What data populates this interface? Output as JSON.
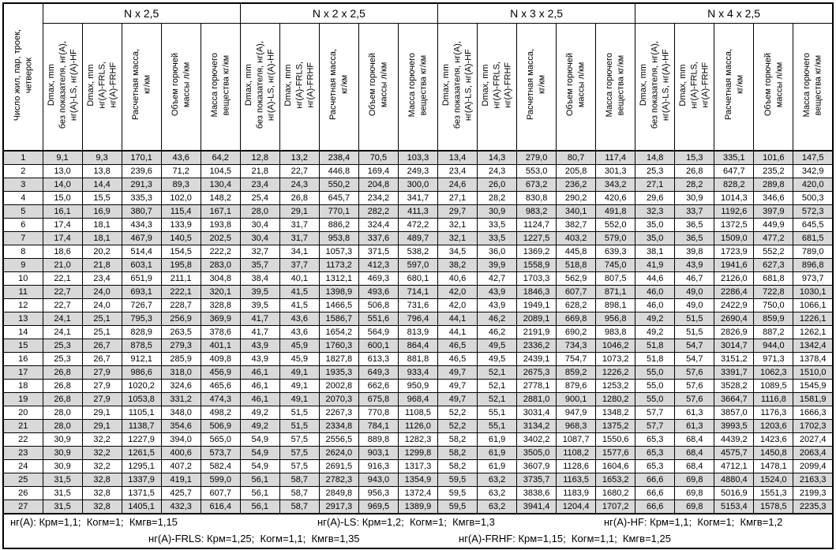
{
  "colors": {
    "row_shade": "#d9d9d9",
    "border": "#000000",
    "background": "#ffffff"
  },
  "table": {
    "corner_header": "Число жил, пар, троек,\nчетверок",
    "groups": [
      {
        "label": "N x 2,5"
      },
      {
        "label": "N x 2 x 2,5"
      },
      {
        "label": "N x 3 x 2,5"
      },
      {
        "label": "N x 4 x 2,5"
      }
    ],
    "subheaders": [
      "Dmax, mm\nбез показателя, нг(А),\nнг(А)-LS, нг(А)-HF",
      "Dmax, mm\nнг(А)-FRLS,\nнг(А)-FRHF",
      "Расчетная масса,\nкг/км",
      "Объем горючей\nмассы л/км",
      "Масса горючего\nвещества кг/км"
    ],
    "rows": [
      {
        "n": "1",
        "values": [
          "9,1",
          "9,3",
          "170,1",
          "43,6",
          "64,2",
          "12,8",
          "13,2",
          "238,4",
          "70,5",
          "103,3",
          "13,4",
          "14,3",
          "279,0",
          "80,7",
          "117,4",
          "14,8",
          "15,3",
          "335,1",
          "101,6",
          "147,5"
        ]
      },
      {
        "n": "2",
        "values": [
          "13,0",
          "13,8",
          "239,6",
          "71,2",
          "104,5",
          "21,8",
          "22,7",
          "446,8",
          "169,4",
          "249,3",
          "23,4",
          "24,3",
          "553,0",
          "205,8",
          "301,3",
          "25,3",
          "26,8",
          "647,7",
          "235,2",
          "342,9"
        ]
      },
      {
        "n": "3",
        "values": [
          "14,0",
          "14,4",
          "291,3",
          "89,3",
          "130,4",
          "23,4",
          "24,3",
          "550,2",
          "204,8",
          "300,0",
          "24,6",
          "26,0",
          "673,2",
          "236,2",
          "343,2",
          "27,1",
          "28,2",
          "828,2",
          "289,8",
          "420,0"
        ]
      },
      {
        "n": "4",
        "values": [
          "15,0",
          "15,5",
          "335,3",
          "102,0",
          "148,2",
          "25,4",
          "26,8",
          "645,7",
          "234,2",
          "341,7",
          "27,1",
          "28,2",
          "830,8",
          "290,2",
          "420,6",
          "29,6",
          "30,9",
          "1014,3",
          "346,6",
          "500,3"
        ]
      },
      {
        "n": "5",
        "values": [
          "16,1",
          "16,9",
          "380,7",
          "115,4",
          "167,1",
          "28,0",
          "29,1",
          "770,1",
          "282,2",
          "411,3",
          "29,7",
          "30,9",
          "983,2",
          "340,1",
          "491,8",
          "32,3",
          "33,7",
          "1192,6",
          "397,9",
          "572,3"
        ]
      },
      {
        "n": "6",
        "values": [
          "17,4",
          "18,1",
          "434,3",
          "133,9",
          "193,8",
          "30,4",
          "31,7",
          "886,2",
          "324,4",
          "472,2",
          "32,1",
          "33,5",
          "1124,7",
          "382,7",
          "552,0",
          "35,0",
          "36,5",
          "1372,5",
          "449,9",
          "645,5"
        ]
      },
      {
        "n": "7",
        "values": [
          "17,4",
          "18,1",
          "467,9",
          "140,5",
          "202,5",
          "30,4",
          "31,7",
          "953,8",
          "337,6",
          "489,7",
          "32,1",
          "33,5",
          "1227,5",
          "403,2",
          "579,0",
          "35,0",
          "36,5",
          "1509,0",
          "477,2",
          "681,5"
        ]
      },
      {
        "n": "8",
        "values": [
          "18,6",
          "20,2",
          "514,4",
          "154,5",
          "222,2",
          "32,7",
          "34,1",
          "1057,3",
          "371,5",
          "538,2",
          "34,5",
          "36,0",
          "1369,2",
          "445,8",
          "639,3",
          "38,1",
          "39,8",
          "1723,9",
          "552,2",
          "789,0"
        ]
      },
      {
        "n": "9",
        "values": [
          "21,0",
          "21,8",
          "603,1",
          "195,8",
          "283,0",
          "35,7",
          "37,7",
          "1173,2",
          "412,3",
          "597,0",
          "38,2",
          "39,9",
          "1558,9",
          "518,8",
          "745,0",
          "41,9",
          "43,9",
          "1941,6",
          "627,3",
          "896,8"
        ]
      },
      {
        "n": "10",
        "values": [
          "22,1",
          "23,4",
          "651,9",
          "211,1",
          "304,8",
          "38,4",
          "40,1",
          "1312,1",
          "469,3",
          "680,1",
          "40,6",
          "42,7",
          "1703,3",
          "562,9",
          "807,5",
          "44,6",
          "46,7",
          "2126,0",
          "681,8",
          "973,7"
        ]
      },
      {
        "n": "11",
        "values": [
          "22,7",
          "24,0",
          "693,1",
          "222,1",
          "320,1",
          "39,5",
          "41,5",
          "1398,9",
          "493,6",
          "714,1",
          "42,0",
          "43,9",
          "1846,3",
          "607,7",
          "871,1",
          "46,0",
          "49,0",
          "2286,4",
          "722,8",
          "1030,1"
        ]
      },
      {
        "n": "12",
        "values": [
          "22,7",
          "24,0",
          "726,7",
          "228,7",
          "328,8",
          "39,5",
          "41,5",
          "1466,5",
          "506,8",
          "731,6",
          "42,0",
          "43,9",
          "1949,1",
          "628,2",
          "898,1",
          "46,0",
          "49,0",
          "2422,9",
          "750,0",
          "1066,1"
        ]
      },
      {
        "n": "13",
        "values": [
          "24,1",
          "25,1",
          "795,3",
          "256,9",
          "369,9",
          "41,7",
          "43,6",
          "1586,7",
          "551,6",
          "796,4",
          "44,1",
          "46,2",
          "2089,1",
          "669,8",
          "956,8",
          "49,2",
          "51,5",
          "2690,4",
          "859,9",
          "1226,1"
        ]
      },
      {
        "n": "14",
        "values": [
          "24,1",
          "25,1",
          "828,9",
          "263,5",
          "378,6",
          "41,7",
          "43,6",
          "1654,2",
          "564,9",
          "813,9",
          "44,1",
          "46,2",
          "2191,9",
          "690,2",
          "983,8",
          "49,2",
          "51,5",
          "2826,9",
          "887,2",
          "1262,1"
        ]
      },
      {
        "n": "15",
        "values": [
          "25,3",
          "26,7",
          "878,5",
          "279,3",
          "401,1",
          "43,9",
          "45,9",
          "1760,3",
          "600,1",
          "864,4",
          "46,5",
          "49,5",
          "2336,2",
          "734,3",
          "1046,2",
          "51,8",
          "54,7",
          "3014,7",
          "944,0",
          "1342,4"
        ]
      },
      {
        "n": "16",
        "values": [
          "25,3",
          "26,7",
          "912,1",
          "285,9",
          "409,8",
          "43,9",
          "45,9",
          "1827,8",
          "613,3",
          "881,8",
          "46,5",
          "49,5",
          "2439,1",
          "754,7",
          "1073,2",
          "51,8",
          "54,7",
          "3151,2",
          "971,3",
          "1378,4"
        ]
      },
      {
        "n": "17",
        "values": [
          "26,8",
          "27,9",
          "986,6",
          "318,0",
          "456,9",
          "46,1",
          "49,1",
          "1935,3",
          "649,3",
          "933,4",
          "49,7",
          "52,1",
          "2675,3",
          "859,2",
          "1226,2",
          "55,0",
          "57,6",
          "3391,7",
          "1062,3",
          "1510,0"
        ]
      },
      {
        "n": "18",
        "values": [
          "26,8",
          "27,9",
          "1020,2",
          "324,6",
          "465,6",
          "46,1",
          "49,1",
          "2002,8",
          "662,6",
          "950,9",
          "49,7",
          "52,1",
          "2778,1",
          "879,6",
          "1253,2",
          "55,0",
          "57,6",
          "3528,2",
          "1089,5",
          "1545,9"
        ]
      },
      {
        "n": "19",
        "values": [
          "26,8",
          "27,9",
          "1053,8",
          "331,2",
          "474,3",
          "46,1",
          "49,1",
          "2070,3",
          "675,8",
          "968,4",
          "49,7",
          "52,1",
          "2881,0",
          "900,1",
          "1280,2",
          "55,0",
          "57,6",
          "3664,7",
          "1116,8",
          "1581,9"
        ]
      },
      {
        "n": "20",
        "values": [
          "28,0",
          "29,1",
          "1105,1",
          "348,0",
          "498,2",
          "49,2",
          "51,5",
          "2267,3",
          "770,8",
          "1108,5",
          "52,2",
          "55,1",
          "3031,4",
          "947,9",
          "1348,2",
          "57,7",
          "61,3",
          "3857,0",
          "1176,3",
          "1666,3"
        ]
      },
      {
        "n": "21",
        "values": [
          "28,0",
          "29,1",
          "1138,7",
          "354,6",
          "506,9",
          "49,2",
          "51,5",
          "2334,8",
          "784,1",
          "1126,0",
          "52,2",
          "55,1",
          "3134,2",
          "968,3",
          "1375,2",
          "57,7",
          "61,3",
          "3993,5",
          "1203,6",
          "1702,3"
        ]
      },
      {
        "n": "22",
        "values": [
          "30,9",
          "32,2",
          "1227,9",
          "394,0",
          "565,0",
          "54,9",
          "57,5",
          "2556,5",
          "889,8",
          "1282,3",
          "58,2",
          "61,9",
          "3402,2",
          "1087,7",
          "1550,6",
          "65,3",
          "68,4",
          "4439,2",
          "1423,6",
          "2027,4"
        ]
      },
      {
        "n": "23",
        "values": [
          "30,9",
          "32,2",
          "1261,5",
          "400,6",
          "573,7",
          "54,9",
          "57,5",
          "2624,0",
          "903,1",
          "1299,8",
          "58,2",
          "61,9",
          "3505,0",
          "1108,2",
          "1577,6",
          "65,3",
          "68,4",
          "4575,7",
          "1450,8",
          "2063,4"
        ]
      },
      {
        "n": "24",
        "values": [
          "30,9",
          "32,2",
          "1295,1",
          "407,2",
          "582,4",
          "54,9",
          "57,5",
          "2691,5",
          "916,3",
          "1317,3",
          "58,2",
          "61,9",
          "3607,9",
          "1128,6",
          "1604,6",
          "65,3",
          "68,4",
          "4712,1",
          "1478,1",
          "2099,4"
        ]
      },
      {
        "n": "25",
        "values": [
          "31,5",
          "32,8",
          "1337,9",
          "419,1",
          "599,0",
          "56,1",
          "58,7",
          "2782,3",
          "943,0",
          "1354,9",
          "59,5",
          "63,2",
          "3735,7",
          "1163,5",
          "1653,2",
          "66,6",
          "69,8",
          "4880,4",
          "1524,0",
          "2163,3"
        ]
      },
      {
        "n": "26",
        "values": [
          "31,5",
          "32,8",
          "1371,5",
          "425,7",
          "607,7",
          "56,1",
          "58,7",
          "2849,8",
          "956,3",
          "1372,4",
          "59,5",
          "63,2",
          "3838,6",
          "1183,9",
          "1680,2",
          "66,6",
          "69,8",
          "5016,9",
          "1551,3",
          "2199,3"
        ]
      },
      {
        "n": "27",
        "values": [
          "31,5",
          "32,8",
          "1405,1",
          "432,3",
          "616,4",
          "56,1",
          "58,7",
          "2917,3",
          "969,5",
          "1389,9",
          "59,5",
          "63,2",
          "3941,4",
          "1204,4",
          "1707,2",
          "66,6",
          "69,8",
          "5153,4",
          "1578,5",
          "2235,3"
        ]
      }
    ]
  },
  "footnotes": {
    "line1": [
      "нг(А): Крм=1,1;  Когм=1;  Кмгв=1,15",
      "нг(А)-LS: Крм=1,2;  Когм=1;  Кмгв=1,3",
      "нг(А)-HF: Крм=1,1;  Когм=1;  Кмгв=1,2"
    ],
    "line2": [
      "нг(А)-FRLS: Крм=1,25;  Когм=1,1;  Кмгв=1,35",
      "нг(А)-FRHF: Крм=1,15;  Когм=1,1;  Кмгв=1,25"
    ]
  }
}
